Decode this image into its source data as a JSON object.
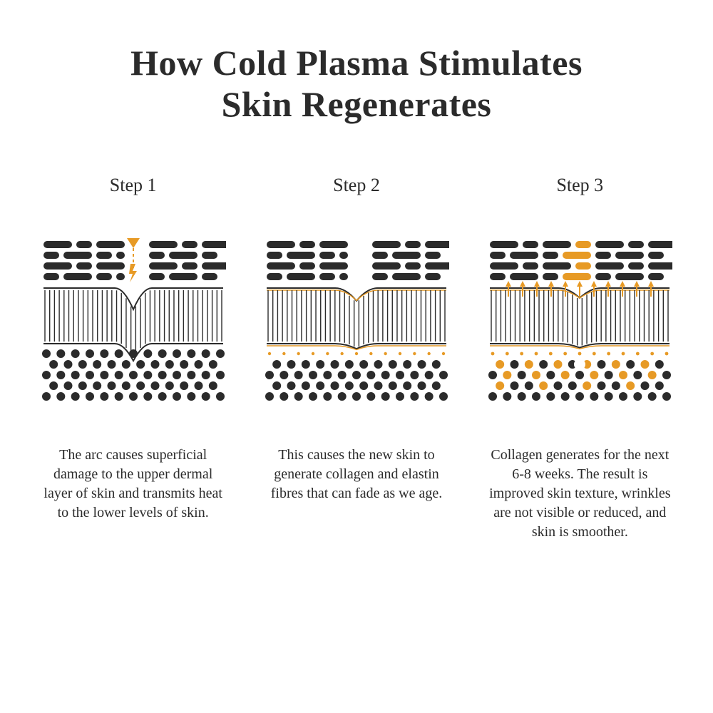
{
  "title_line1": "How Cold Plasma Stimulates",
  "title_line2": "Skin Regenerates",
  "colors": {
    "dark": "#2b2b2b",
    "accent": "#e79a25",
    "bg": "#ffffff"
  },
  "diagram_style": {
    "dash_h": 10,
    "dash_radius": 5,
    "dash_rows": 4,
    "fiber_stroke_w": 2,
    "dot_radius": 6,
    "dot_rows": 5,
    "dot_cols": 13,
    "membrane_stroke_w": 2
  },
  "steps": [
    {
      "label": "Step 1",
      "desc": "The arc causes superficial damage to the upper dermal layer of skin and transmits heat to the lower levels of skin.",
      "variant": "arc"
    },
    {
      "label": "Step 2",
      "desc": "This causes the new skin to generate collagen and elastin fibres that can fade as we age.",
      "variant": "collagen"
    },
    {
      "label": "Step 3",
      "desc": "Collagen generates for the next 6-8 weeks. The result is improved skin texture, wrinkles are not visible or reduced, and skin is smoother.",
      "variant": "regenerate"
    }
  ]
}
